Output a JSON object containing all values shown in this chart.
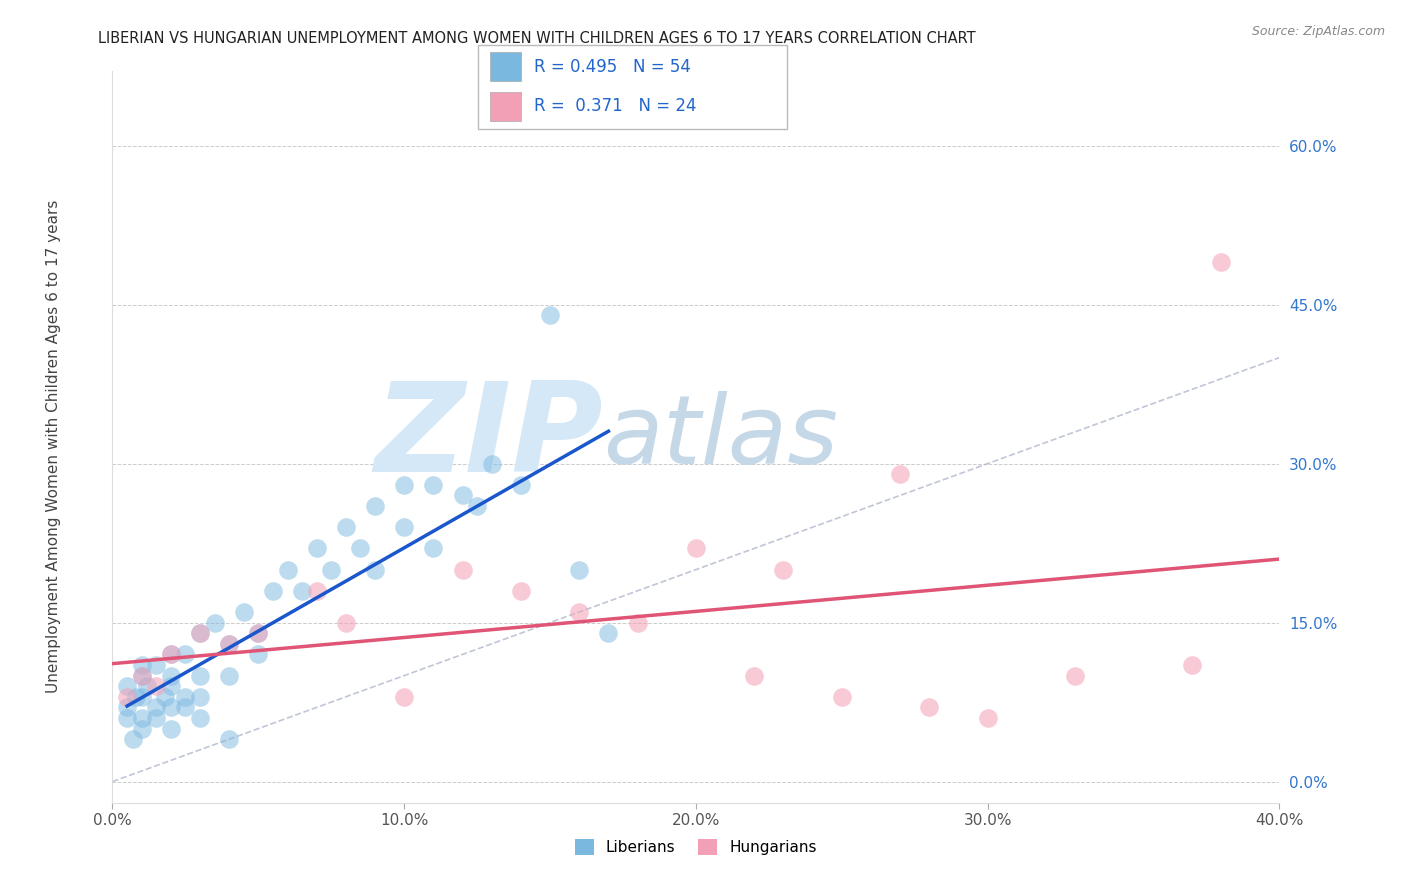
{
  "title": "LIBERIAN VS HUNGARIAN UNEMPLOYMENT AMONG WOMEN WITH CHILDREN AGES 6 TO 17 YEARS CORRELATION CHART",
  "source": "Source: ZipAtlas.com",
  "ylabel": "Unemployment Among Women with Children Ages 6 to 17 years",
  "xlim": [
    0.0,
    0.4
  ],
  "ylim": [
    -0.02,
    0.67
  ],
  "xtick_labels": [
    "0.0%",
    "10.0%",
    "20.0%",
    "30.0%",
    "40.0%"
  ],
  "xtick_vals": [
    0.0,
    0.1,
    0.2,
    0.3,
    0.4
  ],
  "ytick_labels_right": [
    "0.0%",
    "15.0%",
    "30.0%",
    "45.0%",
    "60.0%"
  ],
  "ytick_vals": [
    0.0,
    0.15,
    0.3,
    0.45,
    0.6
  ],
  "liberian_R": "0.495",
  "liberian_N": "54",
  "hungarian_R": "0.371",
  "hungarian_N": "24",
  "liberian_color": "#7bb8e0",
  "hungarian_color": "#f2a0b5",
  "liberian_line_color": "#1a56cc",
  "hungarian_line_color": "#e05575",
  "watermark_zip": "ZIP",
  "watermark_atlas": "atlas",
  "watermark_color_zip": "#d5e8f8",
  "watermark_color_atlas": "#c5d8e8",
  "background_color": "#ffffff",
  "grid_color": "#cccccc",
  "liberian_x": [
    0.005,
    0.005,
    0.008,
    0.01,
    0.01,
    0.01,
    0.01,
    0.012,
    0.015,
    0.015,
    0.018,
    0.02,
    0.02,
    0.02,
    0.02,
    0.025,
    0.025,
    0.03,
    0.03,
    0.03,
    0.035,
    0.04,
    0.04,
    0.045,
    0.05,
    0.05,
    0.055,
    0.06,
    0.065,
    0.07,
    0.075,
    0.08,
    0.085,
    0.09,
    0.09,
    0.1,
    0.1,
    0.11,
    0.11,
    0.12,
    0.125,
    0.13,
    0.14,
    0.15,
    0.16,
    0.17,
    0.005,
    0.007,
    0.01,
    0.015,
    0.02,
    0.025,
    0.03,
    0.04
  ],
  "liberian_y": [
    0.07,
    0.09,
    0.08,
    0.1,
    0.08,
    0.11,
    0.06,
    0.09,
    0.07,
    0.11,
    0.08,
    0.1,
    0.09,
    0.07,
    0.12,
    0.12,
    0.08,
    0.1,
    0.14,
    0.08,
    0.15,
    0.13,
    0.1,
    0.16,
    0.14,
    0.12,
    0.18,
    0.2,
    0.18,
    0.22,
    0.2,
    0.24,
    0.22,
    0.26,
    0.2,
    0.28,
    0.24,
    0.28,
    0.22,
    0.27,
    0.26,
    0.3,
    0.28,
    0.44,
    0.2,
    0.14,
    0.06,
    0.04,
    0.05,
    0.06,
    0.05,
    0.07,
    0.06,
    0.04
  ],
  "hungarian_x": [
    0.005,
    0.01,
    0.015,
    0.02,
    0.03,
    0.04,
    0.05,
    0.07,
    0.08,
    0.1,
    0.12,
    0.14,
    0.16,
    0.18,
    0.2,
    0.22,
    0.23,
    0.25,
    0.27,
    0.28,
    0.3,
    0.33,
    0.37,
    0.38
  ],
  "hungarian_y": [
    0.08,
    0.1,
    0.09,
    0.12,
    0.14,
    0.13,
    0.14,
    0.18,
    0.15,
    0.08,
    0.2,
    0.18,
    0.16,
    0.15,
    0.22,
    0.1,
    0.2,
    0.08,
    0.29,
    0.07,
    0.06,
    0.1,
    0.11,
    0.49
  ],
  "diag_line_color": "#b0b8cc",
  "diag_line_style": "--"
}
